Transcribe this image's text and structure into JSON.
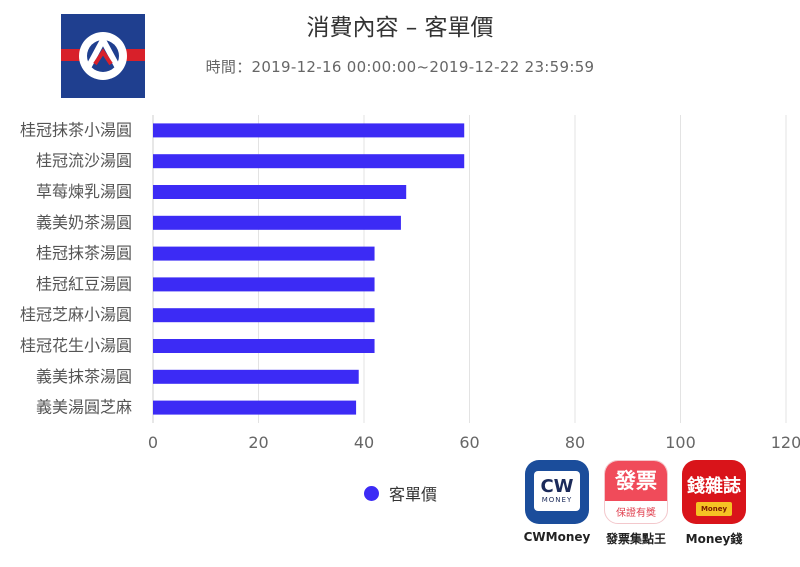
{
  "header": {
    "title": "消費內容 – 客單價",
    "subtitle": "時間：2019-12-16 00:00:00~2019-12-22 23:59:59"
  },
  "legend": {
    "label": "客單價",
    "color": "#3c2bf5"
  },
  "apps": [
    {
      "name": "CWMoney",
      "icon_text": "CW",
      "icon_sub": "MONEY"
    },
    {
      "name": "發票集點王",
      "icon_text": "發票",
      "icon_sub": "保證有獎"
    },
    {
      "name": "Money錢",
      "icon_text": "錢雜誌",
      "icon_sub": "Money"
    }
  ],
  "chart_data": {
    "type": "bar",
    "orientation": "horizontal",
    "categories": [
      "桂冠抹茶小湯圓",
      "桂冠流沙湯圓",
      "草莓煉乳湯圓",
      "義美奶茶湯圓",
      "桂冠抹茶湯圓",
      "桂冠紅豆湯圓",
      "桂冠芝麻小湯圓",
      "桂冠花生小湯圓",
      "義美抹茶湯圓",
      "義美湯圓芝麻"
    ],
    "series": [
      {
        "name": "客單價",
        "values": [
          59,
          59,
          48,
          47,
          42,
          42,
          42,
          42,
          39,
          38.5
        ],
        "color": "#3c2bf5"
      }
    ],
    "xlim": [
      0,
      120
    ],
    "xticks": [
      0,
      20,
      40,
      60,
      80,
      100,
      120
    ],
    "grid": true,
    "legend_position": "bottom-center"
  }
}
